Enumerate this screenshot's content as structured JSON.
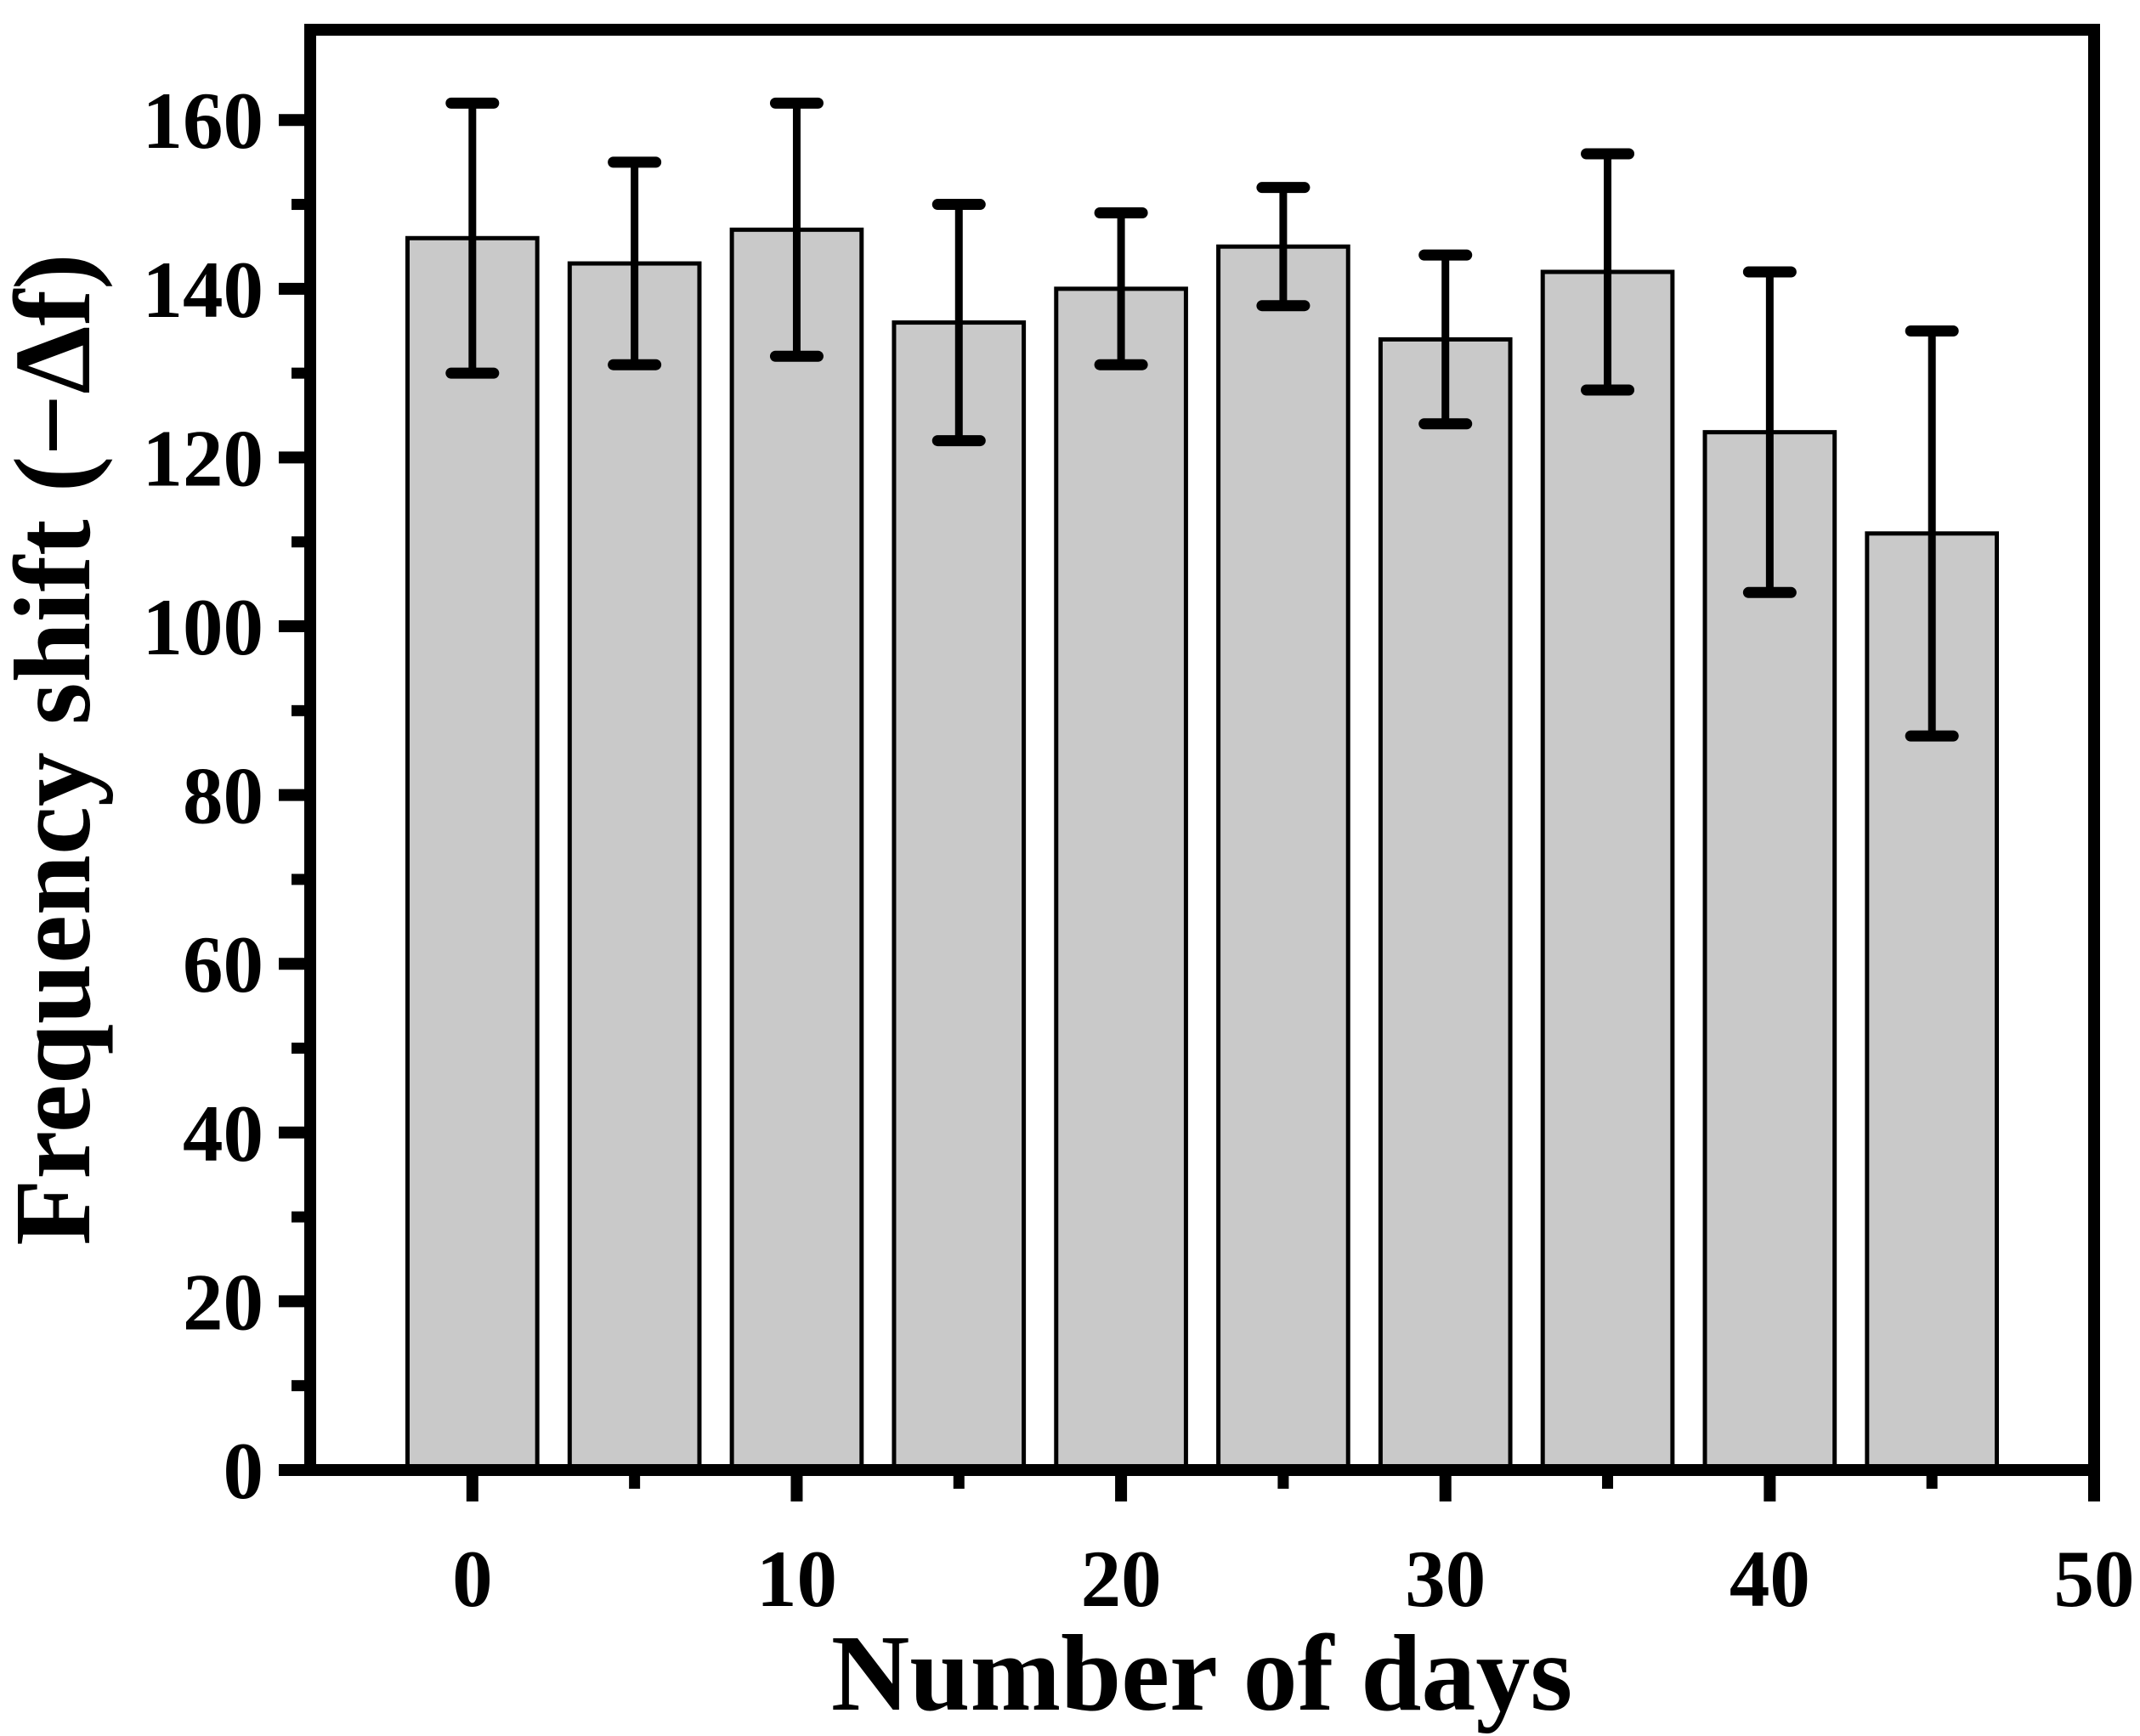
{
  "chart_data": {
    "type": "bar",
    "title": "",
    "xlabel": "Number of days",
    "ylabel": "Frequency shift (−Δf)",
    "x": [
      0,
      5,
      10,
      15,
      20,
      25,
      30,
      35,
      40,
      45
    ],
    "values": [
      146,
      143,
      147,
      136,
      140,
      145,
      134,
      142,
      123,
      111
    ],
    "error_plus": [
      16,
      12,
      15,
      14,
      9,
      7,
      10,
      14,
      19,
      24
    ],
    "error_minus": [
      16,
      12,
      15,
      14,
      9,
      7,
      10,
      14,
      19,
      24
    ],
    "error_upper": [
      162,
      155,
      162,
      150,
      149,
      152,
      144,
      156,
      142,
      135
    ],
    "error_lower": [
      130,
      131,
      132,
      122,
      131,
      138,
      124,
      128,
      104,
      87
    ],
    "xlim": [
      -5,
      50
    ],
    "ylim": [
      0,
      170.7
    ],
    "x_major_ticks": [
      0,
      10,
      20,
      30,
      40,
      50
    ],
    "x_minor_ticks": [
      5,
      15,
      25,
      35,
      45
    ],
    "y_major_ticks": [
      0,
      20,
      40,
      60,
      80,
      100,
      120,
      140,
      160
    ],
    "y_minor_ticks": [
      10,
      30,
      50,
      70,
      90,
      110,
      130,
      150
    ],
    "x_tick_labels": [
      "0",
      "10",
      "20",
      "30",
      "40",
      "50"
    ],
    "y_tick_labels": [
      "0",
      "20",
      "40",
      "60",
      "80",
      "100",
      "120",
      "140",
      "160"
    ],
    "bar_width_days": 4,
    "bar_fill": "#c9c9c9",
    "bar_stroke": "#000000",
    "error_color": "#000000",
    "axis_color": "#000000",
    "background": "#ffffff",
    "grid": false,
    "legend": null
  }
}
